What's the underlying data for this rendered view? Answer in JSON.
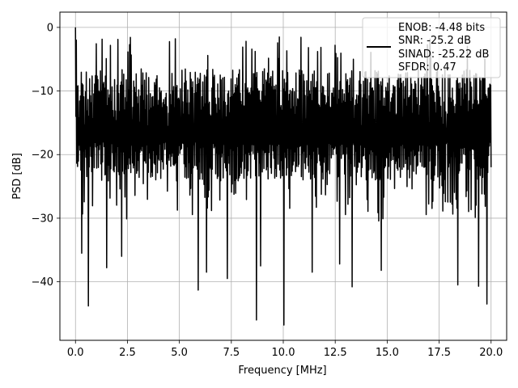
{
  "chart_data": {
    "type": "line",
    "title": "",
    "xlabel": "Frequency [MHz]",
    "ylabel": "PSD [dB]",
    "xlim": [
      -0.75,
      20.75
    ],
    "ylim": [
      -49.2,
      2.4
    ],
    "xticks": [
      0.0,
      2.5,
      5.0,
      7.5,
      10.0,
      12.5,
      15.0,
      17.5,
      20.0
    ],
    "xtick_labels": [
      "0.0",
      "2.5",
      "5.0",
      "7.5",
      "10.0",
      "12.5",
      "15.0",
      "17.5",
      "20.0"
    ],
    "yticks": [
      0,
      -10,
      -20,
      -30,
      -40
    ],
    "ytick_labels": [
      "0",
      "−10",
      "−20",
      "−30",
      "−40"
    ],
    "grid": true,
    "legend_position": "top-right",
    "legend": [
      "ENOB: -4.48 bits",
      "SNR: -25.2 dB",
      "SINAD: -25.22 dB",
      "SFDR: 0.47"
    ],
    "series": [
      {
        "color": "#000000",
        "x_range": [
          0,
          20
        ],
        "num_points": 1000,
        "noise_floor_upper_db": -6.5,
        "noise_floor_lower_db": -24,
        "deep_dips": [
          {
            "x": 0.3,
            "y": -35.5
          },
          {
            "x": 0.6,
            "y": -43.8
          },
          {
            "x": 1.5,
            "y": -37.8
          },
          {
            "x": 2.2,
            "y": -36.0
          },
          {
            "x": 5.9,
            "y": -41.3
          },
          {
            "x": 6.3,
            "y": -38.5
          },
          {
            "x": 7.3,
            "y": -39.5
          },
          {
            "x": 8.7,
            "y": -46.0
          },
          {
            "x": 8.9,
            "y": -37.5
          },
          {
            "x": 10.0,
            "y": -46.8
          },
          {
            "x": 11.4,
            "y": -38.5
          },
          {
            "x": 12.7,
            "y": -37.2
          },
          {
            "x": 13.3,
            "y": -40.8
          },
          {
            "x": 14.7,
            "y": -38.2
          },
          {
            "x": 18.4,
            "y": -40.5
          },
          {
            "x": 19.4,
            "y": -40.7
          },
          {
            "x": 19.8,
            "y": -43.5
          }
        ],
        "peak": {
          "x": 0.0,
          "y": 0.0
        }
      }
    ]
  }
}
